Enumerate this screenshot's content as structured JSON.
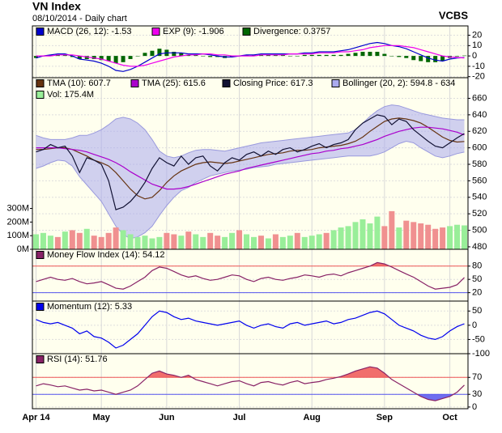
{
  "header": {
    "title": "VN Index",
    "subtitle": "08/10/2014 - Daily chart",
    "brand": "VCBS"
  },
  "chart_data": [
    {
      "type": "macd",
      "ylim": [
        -21,
        29
      ],
      "yticks": [
        20,
        10,
        0,
        -10,
        -20
      ],
      "grid": true,
      "series": [
        {
          "name": "MACD (26, 12): -1.53",
          "color": "#0000cc",
          "values": [
            -2,
            0,
            1,
            2,
            2,
            0,
            -3,
            -4,
            -5,
            -7,
            -10,
            -14,
            -15,
            -13,
            -10,
            -6,
            -2,
            2,
            3,
            3,
            3,
            2,
            2,
            2,
            1,
            0,
            -1,
            -1,
            0,
            1,
            1,
            2,
            2,
            2,
            2,
            2,
            2,
            3,
            3,
            4,
            4,
            4,
            5,
            6,
            8,
            10,
            12,
            13,
            12,
            10,
            9,
            7,
            4,
            1,
            -2,
            -4,
            -5,
            -3,
            -2,
            -1.53
          ]
        },
        {
          "name": "EXP (9): -1.906",
          "color": "#ee00ee",
          "values": [
            0,
            0,
            0,
            1,
            1,
            1,
            0,
            -1,
            -2,
            -3,
            -5,
            -7,
            -9,
            -10,
            -10,
            -9,
            -7,
            -5,
            -3,
            -1,
            0,
            1,
            1,
            2,
            2,
            1,
            1,
            0,
            0,
            0,
            0,
            1,
            1,
            1,
            1,
            2,
            2,
            2,
            2,
            3,
            3,
            3,
            4,
            4,
            5,
            6,
            8,
            9,
            10,
            10,
            10,
            9,
            8,
            6,
            4,
            2,
            0,
            -1,
            -1.5,
            -1.906
          ]
        },
        {
          "name": "Divergence: 0.3757",
          "color": "#006600",
          "style": "bar",
          "values": [
            -2,
            0,
            1,
            1,
            1,
            -1,
            -3,
            -3,
            -3,
            -4,
            -5,
            -7,
            -6,
            -3,
            0,
            3,
            5,
            7,
            6,
            4,
            3,
            1,
            1,
            0,
            -1,
            -1,
            -2,
            -1,
            0,
            1,
            1,
            1,
            1,
            1,
            1,
            0,
            0,
            1,
            1,
            1,
            1,
            1,
            1,
            2,
            3,
            4,
            4,
            4,
            2,
            0,
            -1,
            -2,
            -4,
            -5,
            -6,
            -6,
            -5,
            -2,
            -0.5,
            0.3757
          ]
        }
      ]
    },
    {
      "type": "price",
      "ylim": [
        477,
        685
      ],
      "yticks": [
        480,
        500,
        520,
        540,
        560,
        580,
        600,
        620,
        640,
        660
      ],
      "y2lim": [
        0,
        1260
      ],
      "y2ticks": [
        {
          "value": 0,
          "label": "0M"
        },
        {
          "value": 100,
          "label": "100M"
        },
        {
          "value": 200,
          "label": "200M"
        },
        {
          "value": 300,
          "label": "300M"
        }
      ],
      "grid": true,
      "series": [
        {
          "name": "TMA (10): 607.7",
          "color": "#663311",
          "values": [
            598,
            598,
            599,
            600,
            600,
            598,
            594,
            590,
            585,
            582,
            578,
            570,
            560,
            550,
            542,
            538,
            540,
            548,
            558,
            566,
            572,
            576,
            580,
            582,
            583,
            582,
            581,
            582,
            584,
            586,
            588,
            590,
            592,
            593,
            594,
            596,
            597,
            597,
            598,
            600,
            601,
            602,
            603,
            605,
            608,
            613,
            620,
            626,
            632,
            635,
            636,
            635,
            633,
            630,
            625,
            619,
            613,
            609,
            607,
            607.7
          ]
        },
        {
          "name": "TMA (25): 615.6",
          "color": "#aa00cc",
          "values": [
            600,
            600,
            600,
            600,
            599,
            598,
            597,
            595,
            592,
            589,
            586,
            582,
            577,
            571,
            566,
            561,
            556,
            553,
            550,
            550,
            551,
            553,
            556,
            559,
            562,
            565,
            568,
            570,
            572,
            575,
            577,
            579,
            581,
            583,
            585,
            587,
            589,
            591,
            593,
            594,
            596,
            597,
            599,
            600,
            602,
            604,
            607,
            610,
            614,
            617,
            620,
            622,
            624,
            625,
            625,
            624,
            623,
            621,
            619,
            615.6
          ]
        },
        {
          "name": "Closing Price: 617.3",
          "color": "#111133",
          "values": [
            595,
            598,
            604,
            600,
            602,
            590,
            570,
            588,
            585,
            580,
            560,
            525,
            528,
            535,
            545,
            558,
            575,
            588,
            582,
            578,
            590,
            580,
            588,
            590,
            578,
            572,
            582,
            588,
            585,
            592,
            595,
            590,
            596,
            592,
            598,
            600,
            595,
            598,
            602,
            605,
            600,
            604,
            606,
            610,
            622,
            630,
            635,
            640,
            638,
            628,
            635,
            632,
            622,
            615,
            608,
            602,
            600,
            606,
            612,
            617.3
          ]
        },
        {
          "name": "Bollinger (20, 2): 594.8 - 634",
          "color": "#aaaaee",
          "upper": [
            615,
            612,
            610,
            610,
            610,
            612,
            615,
            615,
            618,
            622,
            628,
            635,
            637,
            635,
            630,
            622,
            610,
            596,
            590,
            588,
            590,
            594,
            597,
            598,
            598,
            597,
            596,
            598,
            600,
            602,
            604,
            606,
            607,
            608,
            609,
            610,
            611,
            612,
            613,
            614,
            615,
            616,
            617,
            618,
            622,
            630,
            638,
            645,
            650,
            652,
            651,
            648,
            645,
            642,
            640,
            638,
            636,
            635,
            634,
            634
          ],
          "lower": [
            575,
            578,
            582,
            585,
            584,
            578,
            565,
            555,
            545,
            535,
            520,
            505,
            495,
            490,
            492,
            497,
            505,
            518,
            530,
            540,
            548,
            552,
            558,
            562,
            566,
            568,
            570,
            572,
            573,
            574,
            576,
            577,
            578,
            580,
            581,
            582,
            583,
            584,
            585,
            586,
            587,
            588,
            589,
            590,
            590,
            590,
            590,
            592,
            595,
            600,
            605,
            608,
            606,
            600,
            595,
            590,
            588,
            590,
            593,
            594.8
          ]
        },
        {
          "name": "Vol: 175.4M",
          "color": "#99ee99",
          "down_color": "#f09090",
          "axis": "y2",
          "values": [
            110,
            120,
            100,
            90,
            130,
            140,
            120,
            150,
            100,
            90,
            120,
            160,
            140,
            110,
            90,
            100,
            80,
            90,
            120,
            110,
            100,
            130,
            110,
            90,
            120,
            100,
            90,
            120,
            140,
            110,
            90,
            100,
            80,
            110,
            90,
            100,
            120,
            90,
            100,
            110,
            120,
            140,
            160,
            170,
            200,
            220,
            190,
            240,
            170,
            280,
            160,
            210,
            200,
            190,
            180,
            150,
            160,
            170,
            180,
            175.4
          ]
        }
      ]
    },
    {
      "type": "line",
      "ylim": [
        1,
        118
      ],
      "yticks": [
        80,
        50,
        20
      ],
      "upper_line": 80,
      "lower_line": 20,
      "upper_color": "#ee5555",
      "lower_color": "#5555ee",
      "series": [
        {
          "name": "Money Flow Index (14): 54.12",
          "color": "#882266",
          "values": [
            45,
            50,
            55,
            50,
            48,
            52,
            45,
            40,
            42,
            45,
            38,
            30,
            28,
            35,
            45,
            55,
            70,
            78,
            75,
            68,
            60,
            55,
            58,
            52,
            48,
            50,
            55,
            60,
            58,
            50,
            45,
            52,
            55,
            50,
            48,
            52,
            55,
            60,
            58,
            55,
            60,
            62,
            58,
            65,
            70,
            75,
            80,
            88,
            85,
            78,
            70,
            62,
            55,
            45,
            35,
            28,
            30,
            32,
            38,
            54.12
          ]
        }
      ]
    },
    {
      "type": "line",
      "ylim": [
        -100,
        85
      ],
      "yticks": [
        50,
        0,
        -50,
        -100
      ],
      "series": [
        {
          "name": "Momentum (12): 5.33",
          "color": "#0000ee",
          "values": [
            20,
            10,
            5,
            10,
            0,
            -10,
            -30,
            -20,
            -40,
            -45,
            -60,
            -80,
            -70,
            -50,
            -30,
            0,
            30,
            50,
            45,
            30,
            20,
            25,
            15,
            10,
            5,
            0,
            5,
            10,
            15,
            0,
            -10,
            0,
            5,
            -5,
            -10,
            5,
            10,
            0,
            5,
            10,
            15,
            5,
            10,
            20,
            25,
            35,
            45,
            50,
            40,
            20,
            0,
            -10,
            -20,
            -35,
            -45,
            -50,
            -40,
            -20,
            -5,
            5.33
          ]
        }
      ]
    },
    {
      "type": "line",
      "ylim": [
        -4,
        126
      ],
      "yticks": [
        70,
        30,
        0
      ],
      "upper_line": 70,
      "lower_line": 30,
      "upper_color": "#ee5555",
      "lower_color": "#5555ee",
      "categories": [
        "Apr 14",
        null,
        null,
        null,
        null,
        null,
        null,
        null,
        null,
        "May",
        null,
        null,
        null,
        null,
        null,
        null,
        null,
        null,
        "Jun",
        null,
        null,
        null,
        null,
        null,
        null,
        null,
        null,
        null,
        "Jul",
        null,
        null,
        null,
        null,
        null,
        null,
        null,
        null,
        null,
        "Aug",
        null,
        null,
        null,
        null,
        null,
        null,
        null,
        null,
        null,
        "Sep",
        null,
        null,
        null,
        null,
        null,
        null,
        null,
        null,
        "Oct",
        null,
        null
      ],
      "series": [
        {
          "name": "RSI (14): 51.76",
          "color": "#882266",
          "values": [
            50,
            55,
            52,
            48,
            50,
            45,
            40,
            42,
            38,
            40,
            35,
            30,
            35,
            40,
            50,
            65,
            80,
            85,
            78,
            75,
            70,
            75,
            65,
            60,
            55,
            50,
            55,
            60,
            62,
            55,
            50,
            58,
            60,
            55,
            52,
            58,
            62,
            55,
            58,
            60,
            65,
            68,
            72,
            78,
            85,
            90,
            95,
            92,
            80,
            65,
            55,
            45,
            35,
            25,
            18,
            15,
            20,
            25,
            35,
            51.76
          ]
        }
      ]
    }
  ]
}
